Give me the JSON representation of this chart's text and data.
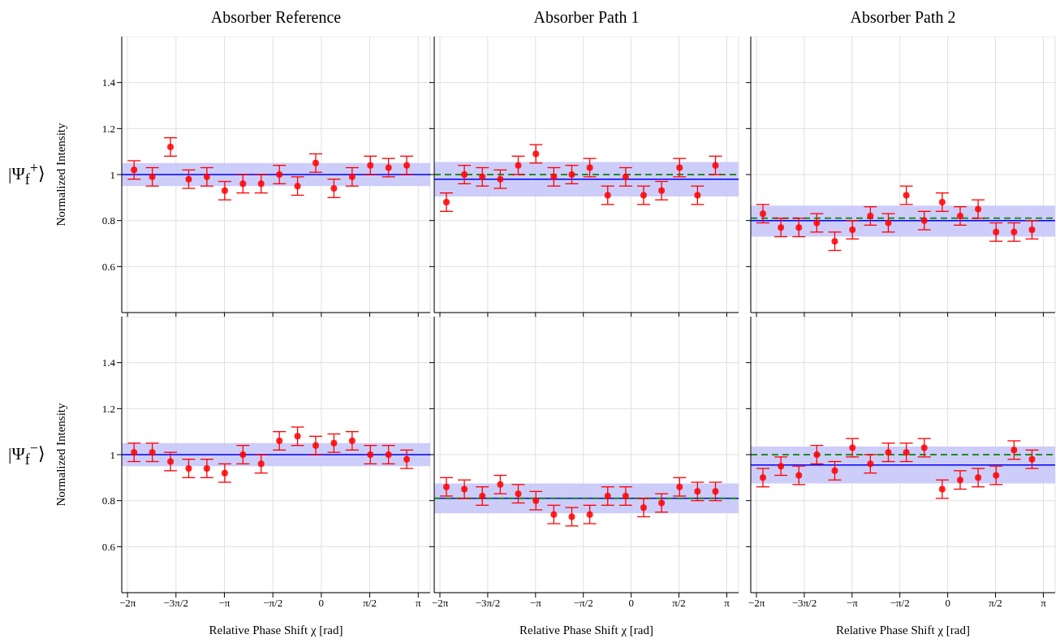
{
  "chart_data": [
    {
      "type": "scatter",
      "title": "Absorber Reference",
      "ylabel": "Normalized Intensity",
      "annotations": [
        "|Ψ$_{f}$$^{+}$⟩"
      ],
      "x": [
        -6.07,
        -5.48,
        -4.89,
        -4.3,
        -3.71,
        -3.13,
        -2.54,
        -1.95,
        -1.36,
        -0.77,
        -0.18,
        0.41,
        1.0,
        1.59,
        2.18,
        2.77
      ],
      "xlim": [
        -6.47,
        3.53
      ],
      "ylim": [
        0.4,
        1.6
      ],
      "xticks": [
        {
          "value": -6.283,
          "label": null
        },
        {
          "value": -4.712,
          "label": null
        },
        {
          "value": -3.142,
          "label": null
        },
        {
          "value": -1.571,
          "label": null
        },
        {
          "value": 0,
          "label": null
        },
        {
          "value": 1.571,
          "label": null
        },
        {
          "value": 3.142,
          "label": null
        }
      ],
      "yticks": [
        0.6,
        0.8,
        1,
        1.2,
        1.4
      ],
      "tick_labels": "y",
      "grid": true,
      "marker": "circle",
      "series": [
        {
          "color": "#ff0000",
          "values": [
            1.02,
            0.99,
            1.12,
            0.98,
            0.99,
            0.93,
            0.96,
            0.96,
            1.0,
            0.95,
            1.05,
            0.94,
            0.99,
            1.04,
            1.03,
            1.04
          ],
          "errors": [
            0.04,
            0.04,
            0.04,
            0.04,
            0.04,
            0.04,
            0.04,
            0.04,
            0.04,
            0.04,
            0.04,
            0.04,
            0.04,
            0.04,
            0.04,
            0.04
          ]
        }
      ],
      "ref_lines": [
        {
          "axis": "y",
          "value": 1.0,
          "color": "#0000ff",
          "line_style": "solid"
        }
      ],
      "bands": [
        {
          "axis": "y",
          "from": 0.95,
          "to": 1.05,
          "color": "#c8c8fa"
        }
      ]
    },
    {
      "type": "scatter",
      "title": "Absorber Path 1",
      "x": [
        -6.07,
        -5.48,
        -4.89,
        -4.3,
        -3.71,
        -3.13,
        -2.54,
        -1.95,
        -1.36,
        -0.77,
        -0.18,
        0.41,
        1.0,
        1.59,
        2.18,
        2.77
      ],
      "xlim": [
        -6.47,
        3.53
      ],
      "ylim": [
        0.4,
        1.6
      ],
      "xticks": [
        {
          "value": -6.283,
          "label": null
        },
        {
          "value": -4.712,
          "label": null
        },
        {
          "value": -3.142,
          "label": null
        },
        {
          "value": -1.571,
          "label": null
        },
        {
          "value": 0,
          "label": null
        },
        {
          "value": 1.571,
          "label": null
        },
        {
          "value": 3.142,
          "label": null
        }
      ],
      "yticks": [
        0.6,
        0.8,
        1,
        1.2,
        1.4
      ],
      "tick_labels": false,
      "grid": true,
      "marker": "circle",
      "series": [
        {
          "color": "#ff0000",
          "values": [
            0.88,
            1.0,
            0.99,
            0.98,
            1.04,
            1.09,
            0.99,
            1.0,
            1.03,
            0.91,
            0.99,
            0.91,
            0.93,
            1.03,
            0.91,
            1.04
          ],
          "errors": [
            0.04,
            0.04,
            0.04,
            0.04,
            0.04,
            0.04,
            0.04,
            0.04,
            0.04,
            0.04,
            0.04,
            0.04,
            0.04,
            0.04,
            0.04,
            0.04
          ]
        }
      ],
      "ref_lines": [
        {
          "axis": "y",
          "value": 0.98,
          "color": "#0000ff",
          "line_style": "solid"
        },
        {
          "axis": "y",
          "value": 1.0,
          "color": "#228b22",
          "line_style": "dashed"
        }
      ],
      "bands": [
        {
          "axis": "y",
          "from": 0.905,
          "to": 1.055,
          "color": "#c8c8fa"
        }
      ]
    },
    {
      "type": "scatter",
      "title": "Absorber Path 2",
      "x": [
        -6.07,
        -5.48,
        -4.89,
        -4.3,
        -3.71,
        -3.13,
        -2.54,
        -1.95,
        -1.36,
        -0.77,
        -0.18,
        0.41,
        1.0,
        1.59,
        2.18,
        2.77
      ],
      "xlim": [
        -6.47,
        3.53
      ],
      "ylim": [
        0.4,
        1.6
      ],
      "xticks": [
        {
          "value": -6.283,
          "label": null
        },
        {
          "value": -4.712,
          "label": null
        },
        {
          "value": -3.142,
          "label": null
        },
        {
          "value": -1.571,
          "label": null
        },
        {
          "value": 0,
          "label": null
        },
        {
          "value": 1.571,
          "label": null
        },
        {
          "value": 3.142,
          "label": null
        }
      ],
      "yticks": [
        0.6,
        0.8,
        1,
        1.2,
        1.4
      ],
      "tick_labels": false,
      "grid": true,
      "marker": "circle",
      "series": [
        {
          "color": "#ff0000",
          "values": [
            0.83,
            0.77,
            0.77,
            0.79,
            0.71,
            0.76,
            0.82,
            0.79,
            0.91,
            0.8,
            0.88,
            0.82,
            0.85,
            0.75,
            0.75,
            0.76
          ],
          "errors": [
            0.04,
            0.04,
            0.04,
            0.04,
            0.04,
            0.04,
            0.04,
            0.04,
            0.04,
            0.04,
            0.04,
            0.04,
            0.04,
            0.04,
            0.04,
            0.04
          ]
        }
      ],
      "ref_lines": [
        {
          "axis": "y",
          "value": 0.8,
          "color": "#0000ff",
          "line_style": "solid"
        },
        {
          "axis": "y",
          "value": 0.81,
          "color": "#228b22",
          "line_style": "dashed"
        }
      ],
      "bands": [
        {
          "axis": "y",
          "from": 0.73,
          "to": 0.865,
          "color": "#c8c8fa"
        }
      ]
    },
    {
      "type": "scatter",
      "xlabel": "Relative Phase Shift χ [rad]",
      "ylabel": "Normalized Intensity",
      "annotations": [
        "|Ψ$_{f}$$^{−}$⟩"
      ],
      "x": [
        -6.07,
        -5.48,
        -4.89,
        -4.3,
        -3.71,
        -3.13,
        -2.54,
        -1.95,
        -1.36,
        -0.77,
        -0.18,
        0.41,
        1.0,
        1.59,
        2.18,
        2.77
      ],
      "xlim": [
        -6.47,
        3.53
      ],
      "ylim": [
        0.4,
        1.6
      ],
      "xticks": [
        {
          "value": -6.283,
          "label": "−2π"
        },
        {
          "value": -4.712,
          "label": "−3π/2"
        },
        {
          "value": -3.142,
          "label": "−π"
        },
        {
          "value": -1.571,
          "label": "−π/2"
        },
        {
          "value": 0,
          "label": "0"
        },
        {
          "value": 1.571,
          "label": "π/2"
        },
        {
          "value": 3.142,
          "label": "π"
        }
      ],
      "yticks": [
        0.6,
        0.8,
        1,
        1.2,
        1.4
      ],
      "grid": true,
      "marker": "circle",
      "series": [
        {
          "color": "#ff0000",
          "values": [
            1.01,
            1.01,
            0.97,
            0.94,
            0.94,
            0.92,
            1.0,
            0.96,
            1.06,
            1.08,
            1.04,
            1.05,
            1.06,
            1.0,
            1.0,
            0.98
          ],
          "errors": [
            0.04,
            0.04,
            0.04,
            0.04,
            0.04,
            0.04,
            0.04,
            0.04,
            0.04,
            0.04,
            0.04,
            0.04,
            0.04,
            0.04,
            0.04,
            0.04
          ]
        }
      ],
      "ref_lines": [
        {
          "axis": "y",
          "value": 1.0,
          "color": "#0000ff",
          "line_style": "solid"
        }
      ],
      "bands": [
        {
          "axis": "y",
          "from": 0.95,
          "to": 1.05,
          "color": "#c8c8fa"
        }
      ]
    },
    {
      "type": "scatter",
      "xlabel": "Relative Phase Shift χ [rad]",
      "x": [
        -6.07,
        -5.48,
        -4.89,
        -4.3,
        -3.71,
        -3.13,
        -2.54,
        -1.95,
        -1.36,
        -0.77,
        -0.18,
        0.41,
        1.0,
        1.59,
        2.18,
        2.77
      ],
      "xlim": [
        -6.47,
        3.53
      ],
      "ylim": [
        0.4,
        1.6
      ],
      "xticks": [
        {
          "value": -6.283,
          "label": "−2π"
        },
        {
          "value": -4.712,
          "label": "−3π/2"
        },
        {
          "value": -3.142,
          "label": "−π"
        },
        {
          "value": -1.571,
          "label": "−π/2"
        },
        0,
        {
          "value": 1.571,
          "label": "π/2"
        },
        {
          "value": 3.142,
          "label": "π"
        }
      ],
      "yticks": [
        0.6,
        0.8,
        1,
        1.2,
        1.4
      ],
      "tick_labels": "x",
      "grid": true,
      "marker": "circle",
      "series": [
        {
          "color": "#ff0000",
          "values": [
            0.86,
            0.85,
            0.82,
            0.87,
            0.83,
            0.8,
            0.74,
            0.73,
            0.74,
            0.82,
            0.82,
            0.77,
            0.79,
            0.86,
            0.84,
            0.84
          ],
          "errors": [
            0.04,
            0.04,
            0.04,
            0.04,
            0.04,
            0.04,
            0.04,
            0.04,
            0.04,
            0.04,
            0.04,
            0.04,
            0.04,
            0.04,
            0.04,
            0.04
          ]
        }
      ],
      "ref_lines": [
        {
          "axis": "y",
          "value": 0.81,
          "color": "#0000ff",
          "line_style": "solid"
        },
        {
          "axis": "y",
          "value": 0.81,
          "color": "#228b22",
          "line_style": "dashed"
        }
      ],
      "bands": [
        {
          "axis": "y",
          "from": 0.745,
          "to": 0.875,
          "color": "#c8c8fa"
        }
      ]
    },
    {
      "type": "scatter",
      "xlabel": "Relative Phase Shift χ [rad]",
      "x": [
        -6.07,
        -5.48,
        -4.89,
        -4.3,
        -3.71,
        -3.13,
        -2.54,
        -1.95,
        -1.36,
        -0.77,
        -0.18,
        0.41,
        1.0,
        1.59,
        2.18,
        2.77
      ],
      "xlim": [
        -6.47,
        3.53
      ],
      "ylim": [
        0.4,
        1.6
      ],
      "xticks": [
        {
          "value": -6.283,
          "label": "−2π"
        },
        {
          "value": -4.712,
          "label": "−3π/2"
        },
        {
          "value": -3.142,
          "label": "−π"
        },
        {
          "value": -1.571,
          "label": "−π/2"
        },
        0,
        {
          "value": 1.571,
          "label": "π/2"
        },
        {
          "value": 3.142,
          "label": "π"
        }
      ],
      "yticks": [
        0.6,
        0.8,
        1,
        1.2,
        1.4
      ],
      "tick_labels": "x",
      "grid": true,
      "marker": "circle",
      "series": [
        {
          "color": "#ff0000",
          "values": [
            0.9,
            0.95,
            0.91,
            1.0,
            0.93,
            1.03,
            0.96,
            1.01,
            1.01,
            1.03,
            0.85,
            0.89,
            0.9,
            0.91,
            1.02,
            0.98
          ],
          "errors": [
            0.04,
            0.04,
            0.04,
            0.04,
            0.04,
            0.04,
            0.04,
            0.04,
            0.04,
            0.04,
            0.04,
            0.04,
            0.04,
            0.04,
            0.04,
            0.04
          ]
        }
      ],
      "ref_lines": [
        {
          "axis": "y",
          "value": 0.955,
          "color": "#0000ff",
          "line_style": "solid"
        },
        {
          "axis": "y",
          "value": 1.0,
          "color": "#228b22",
          "line_style": "dashed"
        }
      ],
      "bands": [
        {
          "axis": "y",
          "from": 0.875,
          "to": 1.035,
          "color": "#c8c8fa"
        }
      ]
    }
  ]
}
